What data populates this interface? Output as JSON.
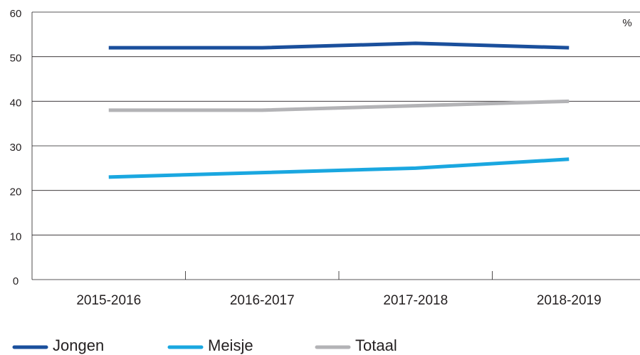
{
  "chart_data": {
    "type": "line",
    "unit": "%",
    "categories": [
      "2015-2016",
      "2016-2017",
      "2017-2018",
      "2018-2019"
    ],
    "series": [
      {
        "name": "Jongen",
        "color": "#1a4f9c",
        "values": [
          52,
          52,
          53,
          52
        ]
      },
      {
        "name": "Meisje",
        "color": "#1aa7e0",
        "values": [
          23,
          24,
          25,
          27
        ]
      },
      {
        "name": "Totaal",
        "color": "#b3b3b6",
        "values": [
          38,
          38,
          39,
          40
        ]
      }
    ],
    "ylim": [
      0,
      60
    ],
    "yticks": [
      0,
      10,
      20,
      30,
      40,
      50,
      60
    ],
    "grid": true
  }
}
